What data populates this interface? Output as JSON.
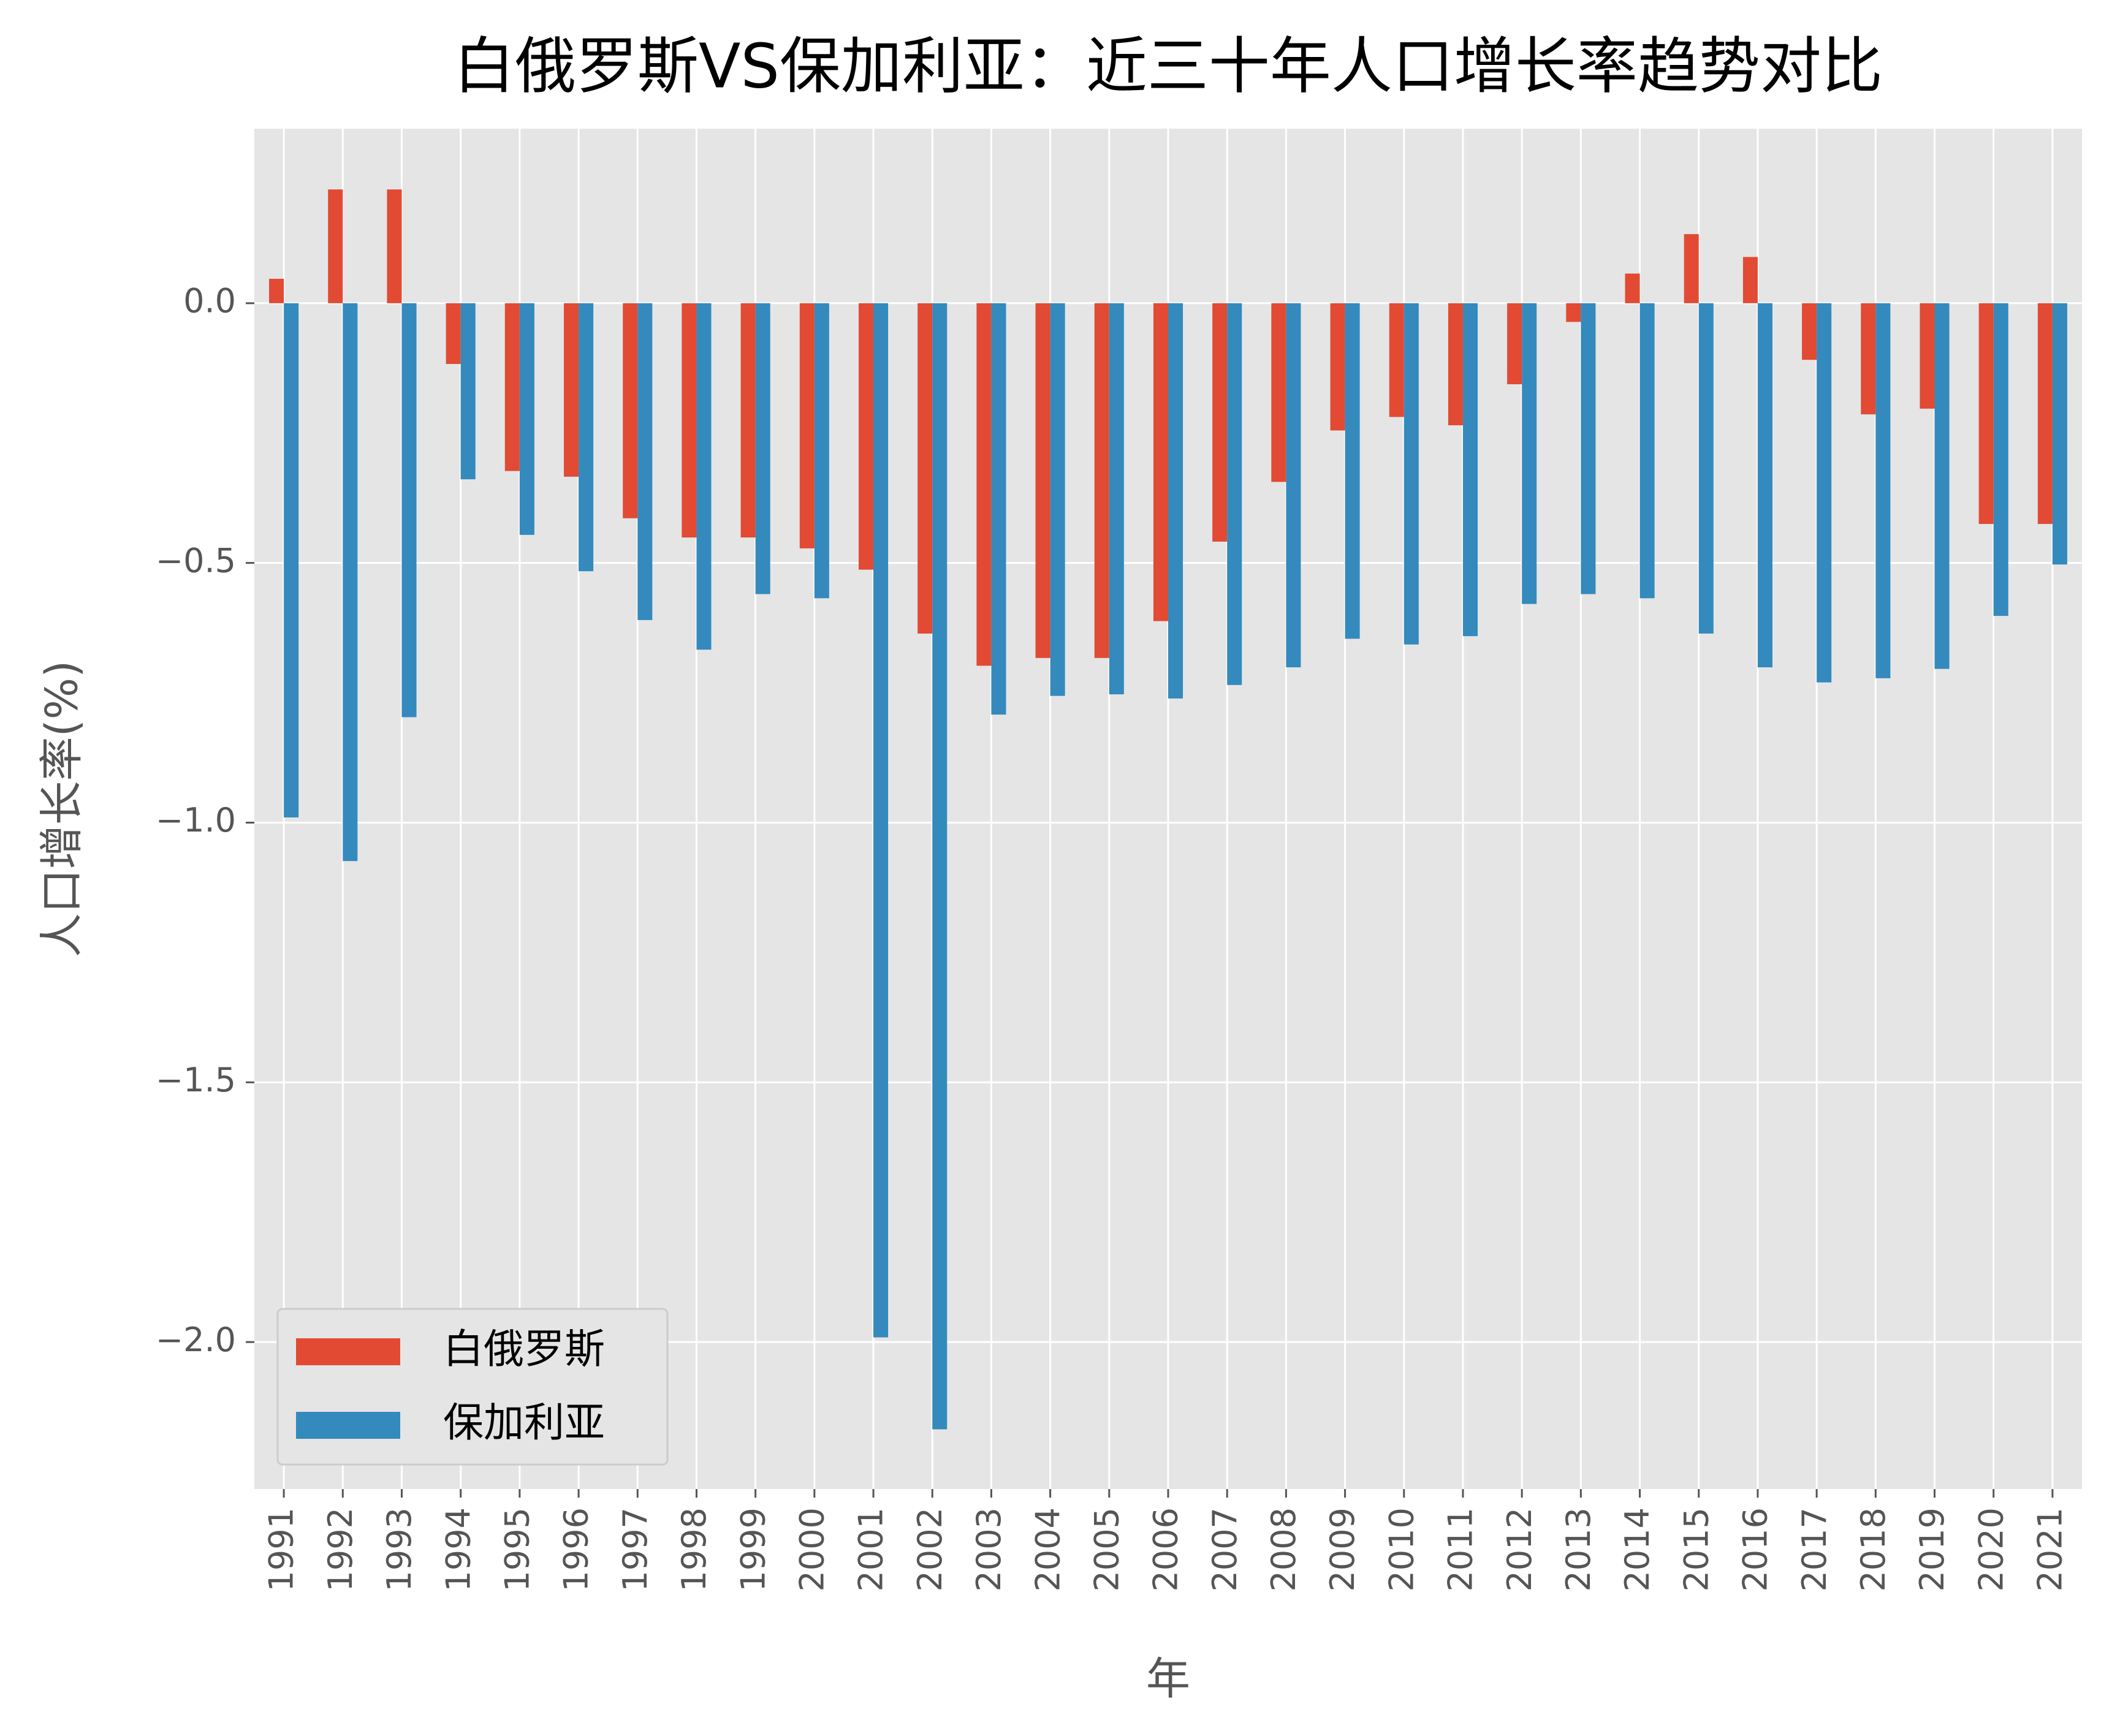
{
  "chart_data": {
    "type": "bar",
    "title": "白俄罗斯VS保加利亚：近三十年人口增长率趋势对比",
    "x_label": "年",
    "y_label": "人口增长率(%)",
    "categories": [
      "1991",
      "1992",
      "1993",
      "1994",
      "1995",
      "1996",
      "1997",
      "1998",
      "1999",
      "2000",
      "2001",
      "2002",
      "2003",
      "2004",
      "2005",
      "2006",
      "2007",
      "2008",
      "2009",
      "2010",
      "2011",
      "2012",
      "2013",
      "2014",
      "2015",
      "2016",
      "2017",
      "2018",
      "2019",
      "2020",
      "2021"
    ],
    "series": [
      {
        "name": "白俄罗斯",
        "color": "#E24A33",
        "values": [
          0.047,
          0.219,
          0.219,
          -0.117,
          -0.323,
          -0.334,
          -0.414,
          -0.451,
          -0.451,
          -0.472,
          -0.513,
          -0.636,
          -0.698,
          -0.683,
          -0.683,
          -0.612,
          -0.459,
          -0.344,
          -0.245,
          -0.219,
          -0.235,
          -0.156,
          -0.036,
          0.057,
          0.133,
          0.089,
          -0.109,
          -0.214,
          -0.203,
          -0.425,
          -0.425
        ]
      },
      {
        "name": "保加利亚",
        "color": "#348ABD",
        "values": [
          -0.99,
          -1.074,
          -0.797,
          -0.339,
          -0.446,
          -0.516,
          -0.61,
          -0.667,
          -0.56,
          -0.568,
          -1.991,
          -2.168,
          -0.792,
          -0.756,
          -0.753,
          -0.761,
          -0.735,
          -0.701,
          -0.646,
          -0.657,
          -0.641,
          -0.579,
          -0.56,
          -0.568,
          -0.636,
          -0.701,
          -0.73,
          -0.722,
          -0.704,
          -0.602,
          -0.503
        ]
      }
    ],
    "ylim": [
      -2.283,
      0.336
    ],
    "yticks": [
      {
        "value": 0,
        "label": "0.0"
      },
      {
        "value": -0.5,
        "label": "−0.5"
      },
      {
        "value": -1,
        "label": "−1.0"
      },
      {
        "value": -1.5,
        "label": "−1.5"
      },
      {
        "value": -2,
        "label": "−2.0"
      }
    ],
    "grid": true,
    "legend": "lower left"
  }
}
